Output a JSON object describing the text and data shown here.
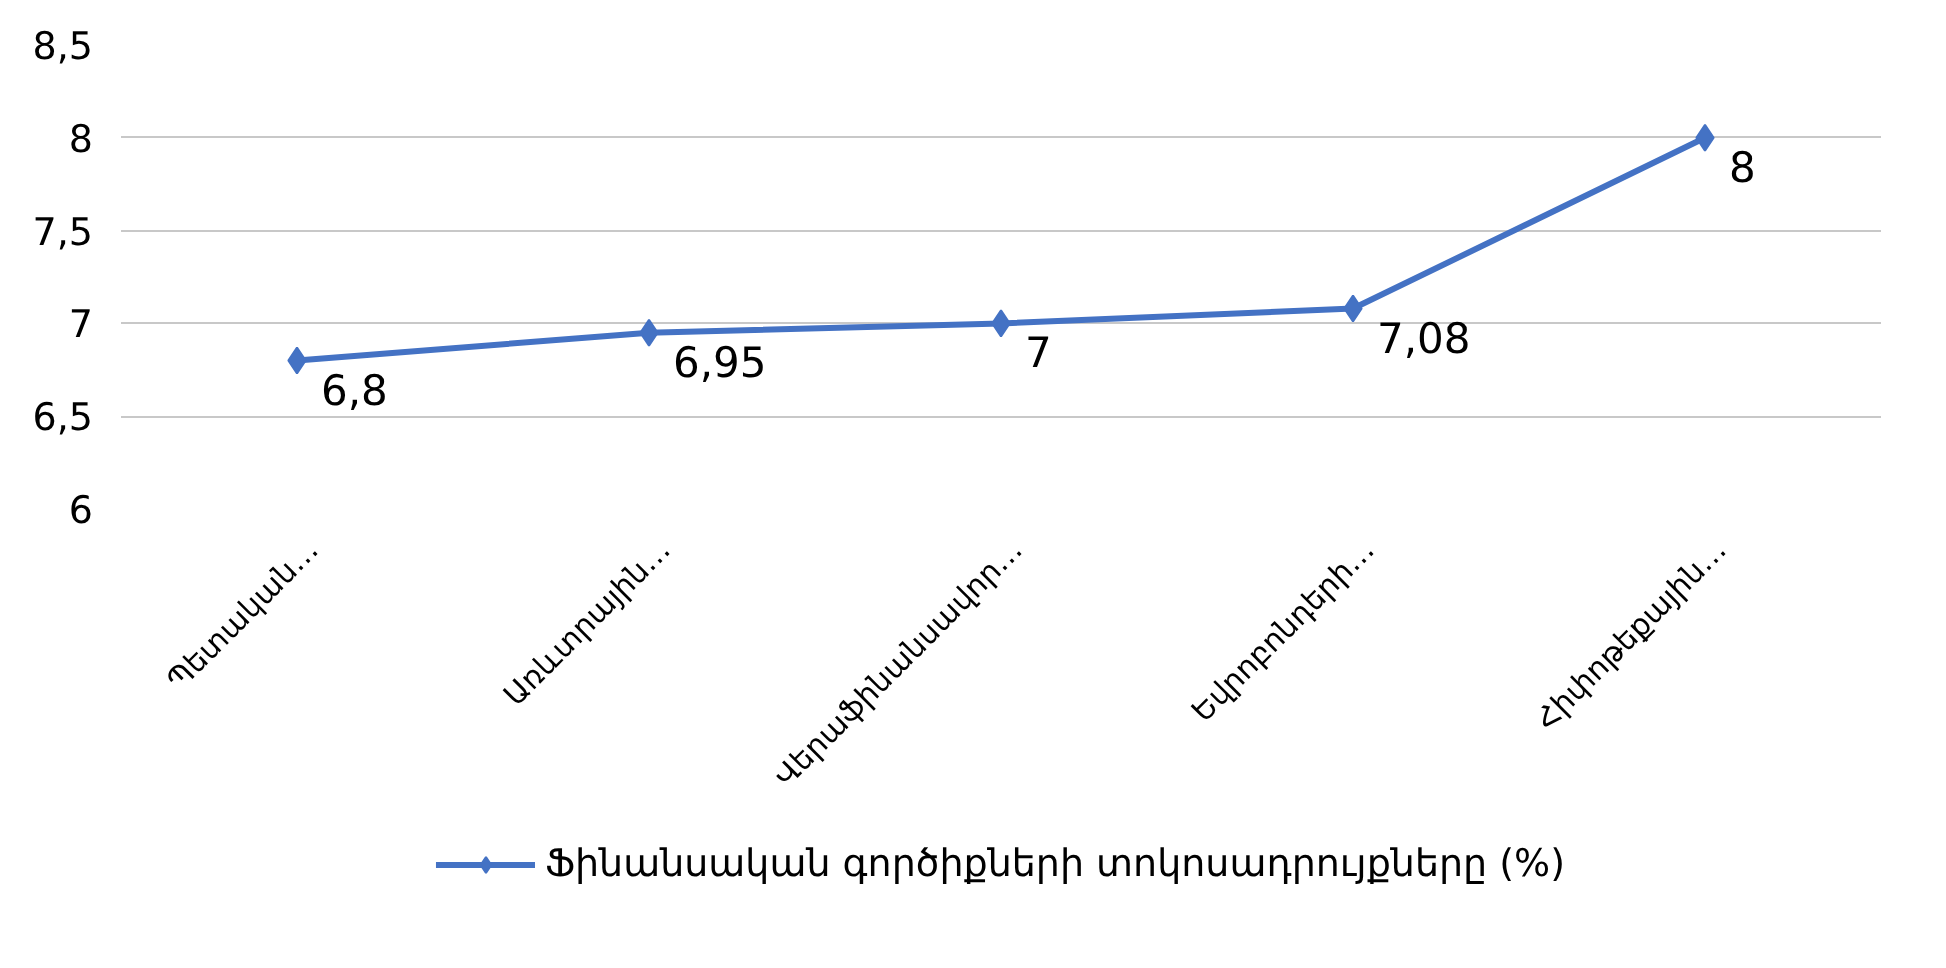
{
  "chart_data": {
    "type": "line",
    "categories": [
      "Պետական…",
      "Առևտրային…",
      "Վերաֆինանսավոր…",
      "Եվրոբոնդերի…",
      "Հիփոթեքային…"
    ],
    "series": [
      {
        "name": "Ֆինանսական գործիքների տոկոսադրույքները (%)",
        "color": "#4472c4",
        "values": [
          6.8,
          6.95,
          7,
          7.08,
          8
        ],
        "value_labels": [
          "6,8",
          "6,95",
          "7",
          "7,08",
          "8"
        ]
      }
    ],
    "ylim": [
      6,
      8.5
    ],
    "yticks": [
      6,
      {
        "value": 6.5,
        "label": "6,5"
      },
      7,
      {
        "value": 7.5,
        "label": "7,5"
      },
      8,
      {
        "value": 8.5,
        "label": "8,5"
      }
    ],
    "grid": "y",
    "legend": "bottom",
    "marker": "diamond",
    "line_style": "solid"
  }
}
